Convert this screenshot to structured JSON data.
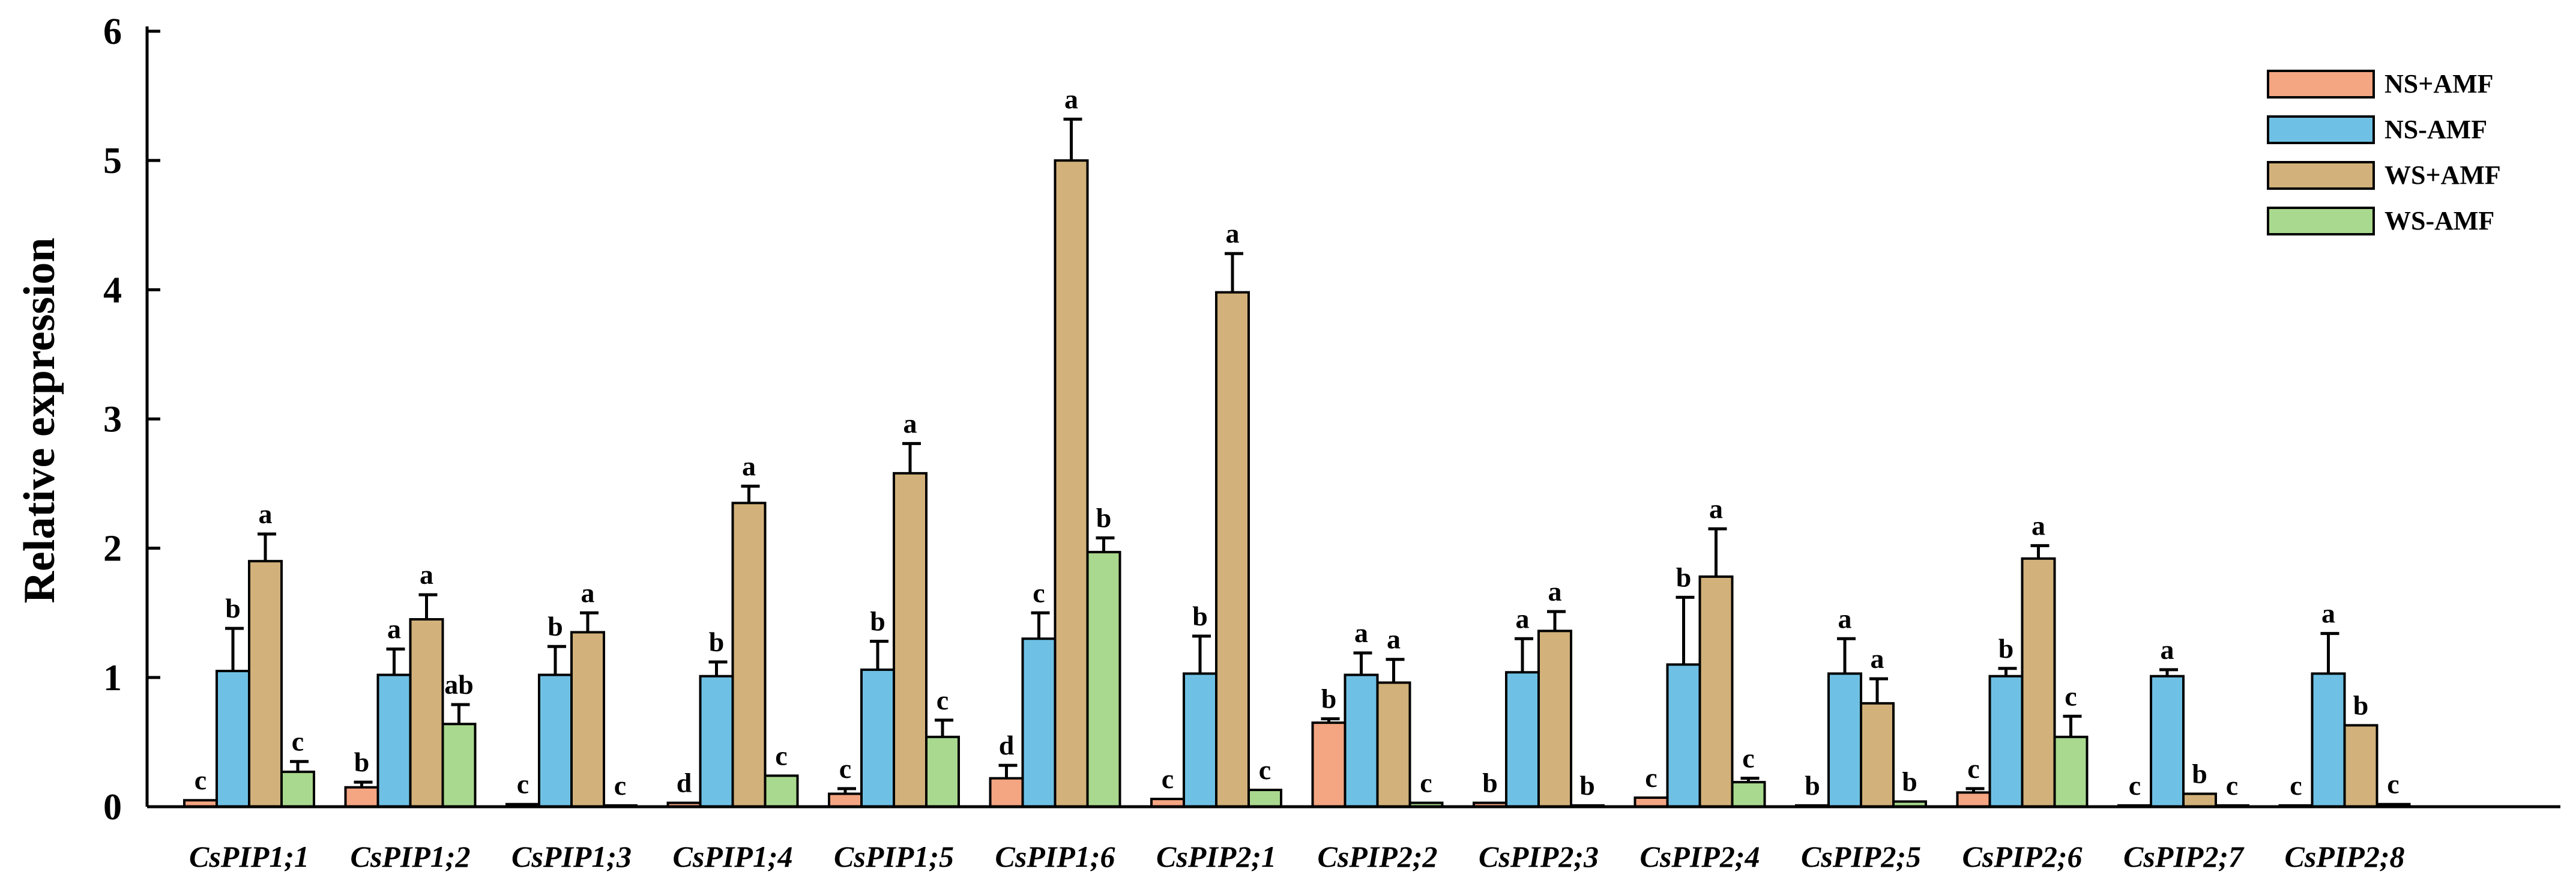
{
  "chart_data": {
    "type": "bar",
    "ylabel": "Relative expression",
    "xlabel": "",
    "ylim": [
      0,
      6
    ],
    "yticks": [
      "0",
      "1",
      "2",
      "3",
      "4",
      "5",
      "6"
    ],
    "categories": [
      "CsPIP1;1",
      "CsPIP1;2",
      "CsPIP1;3",
      "CsPIP1;4",
      "CsPIP1;5",
      "CsPIP1;6",
      "CsPIP2;1",
      "CsPIP2;2",
      "CsPIP2;3",
      "CsPIP2;4",
      "CsPIP2;5",
      "CsPIP2;6",
      "CsPIP2;7",
      "CsPIP2;8"
    ],
    "legend_position": "top-right",
    "grid": false,
    "series": [
      {
        "name": "NS+AMF",
        "color": "#F4A582",
        "values": [
          0.05,
          0.15,
          0.02,
          0.03,
          0.1,
          0.22,
          0.06,
          0.65,
          0.03,
          0.07,
          0.01,
          0.11,
          0.01,
          0.01
        ],
        "errors": [
          0.01,
          0.04,
          0.005,
          0.01,
          0.04,
          0.1,
          0.01,
          0.03,
          0.01,
          0.02,
          0.005,
          0.03,
          0.005,
          0.005
        ],
        "letters": [
          "c",
          "b",
          "c",
          "d",
          "c",
          "d",
          "c",
          "b",
          "b",
          "c",
          "b",
          "c",
          "c",
          "c"
        ]
      },
      {
        "name": "NS-AMF",
        "color": "#6EC1E4",
        "values": [
          1.05,
          1.02,
          1.02,
          1.01,
          1.06,
          1.3,
          1.03,
          1.02,
          1.04,
          1.1,
          1.03,
          1.01,
          1.01,
          1.03
        ],
        "errors": [
          0.33,
          0.2,
          0.22,
          0.11,
          0.22,
          0.2,
          0.29,
          0.17,
          0.26,
          0.52,
          0.27,
          0.06,
          0.05,
          0.31
        ],
        "letters": [
          "b",
          "a",
          "b",
          "b",
          "b",
          "c",
          "b",
          "a",
          "a",
          "b",
          "a",
          "b",
          "a",
          "a"
        ]
      },
      {
        "name": "WS+AMF",
        "color": "#D2B17A",
        "values": [
          1.9,
          1.45,
          1.35,
          2.35,
          2.58,
          5.0,
          3.98,
          0.96,
          1.36,
          1.78,
          0.8,
          1.92,
          0.1,
          0.63
        ],
        "errors": [
          0.21,
          0.19,
          0.15,
          0.13,
          0.23,
          0.32,
          0.3,
          0.18,
          0.15,
          0.37,
          0.19,
          0.1,
          0.02,
          0.02
        ],
        "letters": [
          "a",
          "a",
          "a",
          "a",
          "a",
          "a",
          "a",
          "a",
          "a",
          "a",
          "a",
          "a",
          "b",
          "b"
        ]
      },
      {
        "name": "WS-AMF",
        "color": "#A9D98E",
        "values": [
          0.27,
          0.64,
          0.01,
          0.24,
          0.54,
          1.97,
          0.13,
          0.03,
          0.01,
          0.19,
          0.04,
          0.54,
          0.01,
          0.02
        ],
        "errors": [
          0.08,
          0.15,
          0.005,
          0.02,
          0.13,
          0.11,
          0.02,
          0.01,
          0.005,
          0.03,
          0.01,
          0.16,
          0.005,
          0.005
        ],
        "letters": [
          "c",
          "ab",
          "c",
          "c",
          "c",
          "b",
          "c",
          "c",
          "b",
          "c",
          "b",
          "c",
          "c",
          "c"
        ]
      }
    ]
  }
}
